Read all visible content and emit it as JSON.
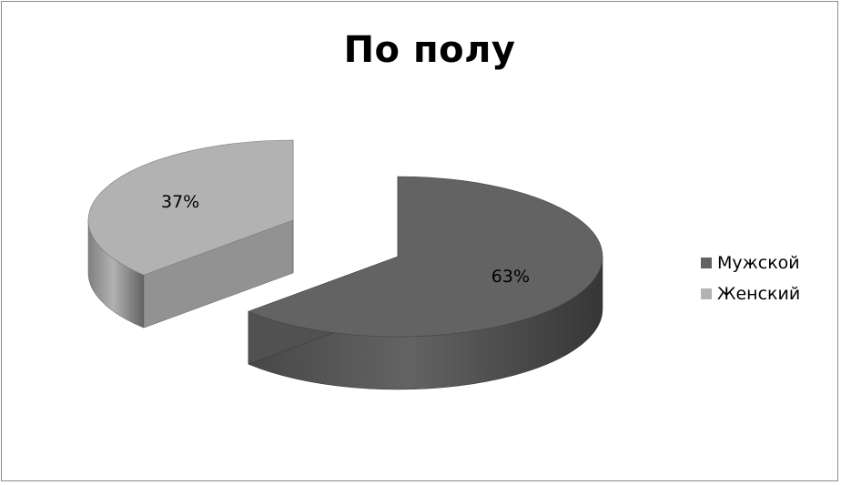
{
  "chart_data": {
    "type": "pie",
    "title": "По полу",
    "categories": [
      "Мужской",
      "Женский"
    ],
    "values": [
      63,
      37
    ],
    "labels": [
      "63%",
      "37%"
    ],
    "colors": [
      "#636363",
      "#b2b2b2"
    ],
    "exploded": true,
    "style": "3d",
    "legend_position": "right"
  },
  "legend": {
    "items": [
      {
        "label": "Мужской",
        "color": "#636363"
      },
      {
        "label": "Женский",
        "color": "#b2b2b2"
      }
    ]
  }
}
